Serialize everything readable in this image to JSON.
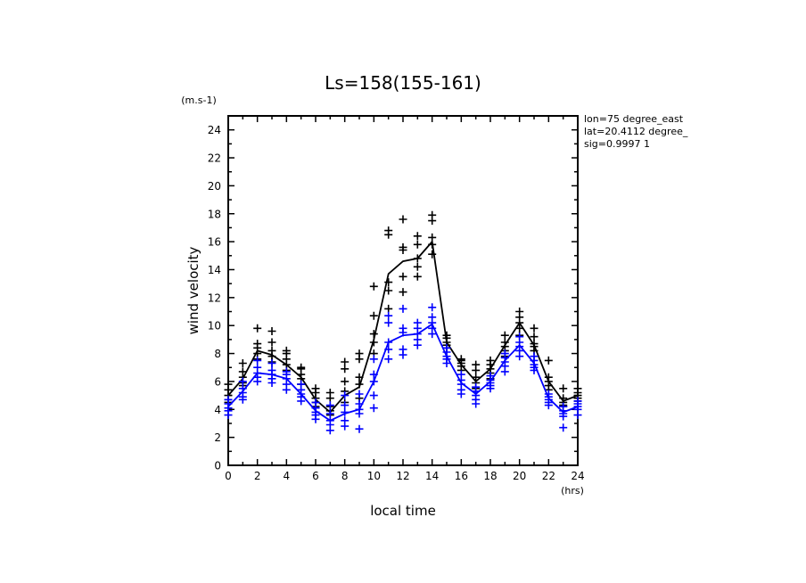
{
  "chart_data": {
    "type": "line",
    "title": "Ls=158(155-161)",
    "xlabel": "local time",
    "ylabel": "wind velocity",
    "yunit": "(m.s-1)",
    "xunit": "(hrs)",
    "xlim": [
      0,
      24
    ],
    "ylim": [
      0,
      25
    ],
    "x_ticks": [
      0,
      2,
      4,
      6,
      8,
      10,
      12,
      14,
      16,
      18,
      20,
      22,
      24
    ],
    "y_ticks": [
      0,
      2,
      4,
      6,
      8,
      10,
      12,
      14,
      16,
      18,
      20,
      22,
      24
    ],
    "info": [
      "lon=75 degree_east",
      "lat=20.4112 degree_",
      "sig=0.9997 1"
    ],
    "series": [
      {
        "color": "#000000",
        "x": [
          0,
          1,
          2,
          3,
          4,
          5,
          6,
          7,
          8,
          9,
          10,
          11,
          12,
          13,
          14,
          15,
          16,
          17,
          18,
          19,
          20,
          21,
          22,
          23,
          24
        ],
        "values": [
          5.0,
          6.2,
          8.2,
          7.9,
          7.2,
          6.3,
          4.7,
          3.8,
          5.0,
          5.6,
          9.0,
          13.7,
          14.6,
          14.8,
          16.0,
          8.8,
          7.2,
          6.0,
          6.9,
          8.6,
          10.2,
          8.6,
          6.0,
          4.6,
          5.0
        ],
        "scatter": [
          [
            5.8,
            5.4,
            5.0,
            4.7,
            4.5
          ],
          [
            7.3,
            6.7,
            6.3,
            5.9,
            5.7
          ],
          [
            9.8,
            8.7,
            8.4,
            8.0,
            7.6
          ],
          [
            9.6,
            8.8,
            8.2,
            7.8,
            7.4
          ],
          [
            8.2,
            8.0,
            7.6,
            7.2,
            6.8
          ],
          [
            7.0,
            6.9,
            6.5,
            6.2,
            5.8
          ],
          [
            5.5,
            5.2,
            4.8,
            4.5,
            4.2
          ],
          [
            5.2,
            4.8,
            4.2,
            3.9,
            3.6
          ],
          [
            7.4,
            6.9,
            6.0,
            5.3,
            4.5
          ],
          [
            8.0,
            7.6,
            6.3,
            5.8,
            4.8
          ],
          [
            12.8,
            10.7,
            9.4,
            8.8,
            8.0
          ],
          [
            16.8,
            16.5,
            13.1,
            12.5,
            11.2
          ],
          [
            17.6,
            15.6,
            15.4,
            13.5,
            12.4
          ],
          [
            16.4,
            15.8,
            14.8,
            14.2,
            13.5
          ],
          [
            17.9,
            17.5,
            16.3,
            15.8,
            15.1
          ],
          [
            9.3,
            9.1,
            8.8,
            8.6,
            8.4
          ],
          [
            7.6,
            7.5,
            7.3,
            7.1,
            6.8
          ],
          [
            7.2,
            6.8,
            6.3,
            5.9,
            5.5
          ],
          [
            7.5,
            7.2,
            6.9,
            6.6,
            6.2
          ],
          [
            9.3,
            8.8,
            8.5,
            8.2,
            7.8
          ],
          [
            11.0,
            10.6,
            10.2,
            9.8,
            9.3
          ],
          [
            9.8,
            9.2,
            8.7,
            8.5,
            8.2
          ],
          [
            7.5,
            6.3,
            6.0,
            5.7,
            5.4
          ],
          [
            5.5,
            4.8,
            4.5,
            4.3,
            4.2
          ],
          [
            5.5,
            5.2,
            5.0,
            4.8,
            4.6
          ]
        ]
      },
      {
        "color": "#0000ff",
        "x": [
          0,
          1,
          2,
          3,
          4,
          5,
          6,
          7,
          8,
          9,
          10,
          11,
          12,
          13,
          14,
          15,
          16,
          17,
          18,
          19,
          20,
          21,
          22,
          23,
          24
        ],
        "values": [
          4.2,
          5.3,
          6.6,
          6.5,
          6.2,
          5.1,
          3.9,
          3.2,
          3.7,
          4.0,
          6.0,
          8.8,
          9.3,
          9.4,
          10.1,
          7.8,
          5.9,
          5.1,
          6.0,
          7.5,
          8.6,
          7.3,
          4.8,
          3.8,
          4.2
        ],
        "scatter": [
          [
            4.7,
            4.4,
            4.1,
            3.9,
            3.6
          ],
          [
            6.0,
            5.5,
            5.2,
            4.9,
            4.7
          ],
          [
            7.5,
            7.0,
            6.6,
            6.3,
            6.0
          ],
          [
            7.3,
            6.8,
            6.5,
            6.2,
            5.9
          ],
          [
            6.7,
            6.5,
            6.2,
            5.8,
            5.4
          ],
          [
            5.8,
            5.4,
            5.1,
            4.9,
            4.6
          ],
          [
            4.5,
            4.1,
            3.8,
            3.6,
            3.3
          ],
          [
            4.3,
            3.7,
            3.2,
            2.9,
            2.5
          ],
          [
            5.0,
            4.3,
            3.8,
            3.2,
            2.8
          ],
          [
            5.1,
            4.4,
            4.0,
            3.7,
            2.6
          ],
          [
            7.6,
            6.5,
            6.0,
            5.0,
            4.1
          ],
          [
            10.7,
            10.2,
            8.8,
            8.3,
            7.6
          ],
          [
            11.2,
            9.8,
            9.5,
            8.3,
            7.9
          ],
          [
            10.2,
            9.8,
            9.4,
            9.0,
            8.6
          ],
          [
            11.3,
            10.6,
            10.2,
            9.8,
            9.4
          ],
          [
            8.4,
            8.1,
            7.8,
            7.6,
            7.3
          ],
          [
            6.5,
            6.1,
            5.8,
            5.4,
            5.1
          ],
          [
            5.6,
            5.3,
            5.0,
            4.7,
            4.4
          ],
          [
            6.4,
            6.1,
            5.9,
            5.7,
            5.5
          ],
          [
            8.0,
            7.7,
            7.4,
            7.1,
            6.7
          ],
          [
            9.2,
            8.8,
            8.5,
            8.2,
            7.8
          ],
          [
            7.8,
            7.5,
            7.2,
            7.0,
            6.8
          ],
          [
            5.1,
            4.9,
            4.7,
            4.5,
            4.3
          ],
          [
            4.2,
            3.9,
            3.7,
            3.5,
            2.7
          ],
          [
            4.6,
            4.4,
            4.2,
            4.0,
            3.6
          ]
        ]
      }
    ]
  }
}
